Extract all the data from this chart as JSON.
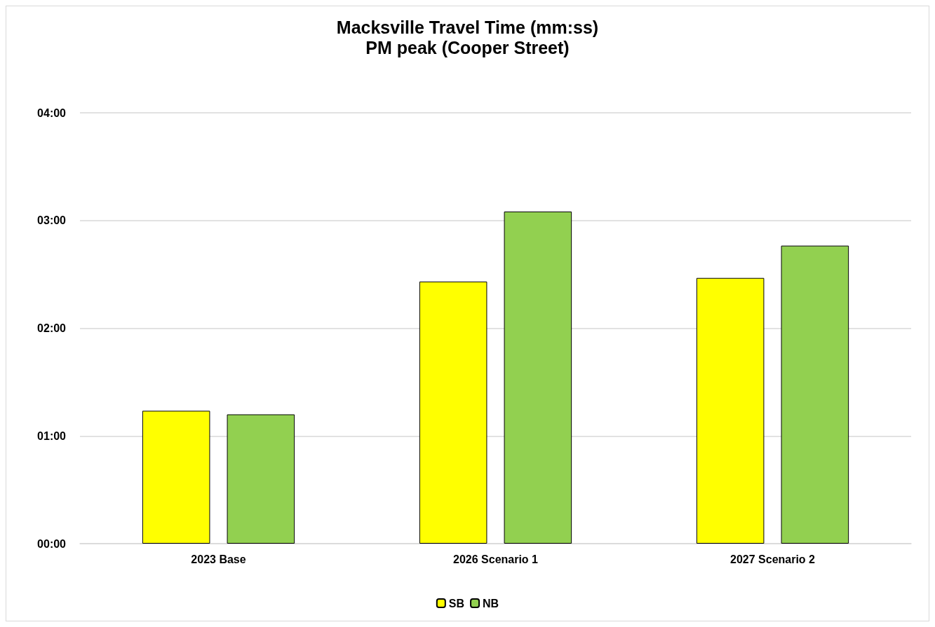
{
  "chart_data": {
    "type": "bar",
    "title": "Macksville Travel Time (mm:ss)",
    "subtitle": "PM peak (Cooper Street)",
    "categories": [
      "2023 Base",
      "2026 Scenario 1",
      "2027 Scenario 2"
    ],
    "series": [
      {
        "name": "SB",
        "color": "#ffff00",
        "values": [
          74,
          146,
          148
        ]
      },
      {
        "name": "NB",
        "color": "#92d050",
        "values": [
          72,
          185,
          166
        ]
      }
    ],
    "ylim": [
      0,
      240
    ],
    "yticks": [
      {
        "value": 0,
        "label": "00:00"
      },
      {
        "value": 60,
        "label": "01:00"
      },
      {
        "value": 120,
        "label": "02:00"
      },
      {
        "value": 180,
        "label": "03:00"
      },
      {
        "value": 240,
        "label": "04:00"
      }
    ],
    "grid": "y",
    "legend": "bottom"
  }
}
